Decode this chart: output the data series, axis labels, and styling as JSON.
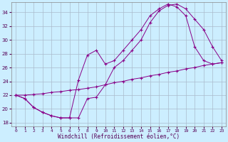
{
  "xlabel": "Windchill (Refroidissement éolien,°C)",
  "bg_color": "#cceeff",
  "grid_color": "#aabbcc",
  "line_color": "#880088",
  "xlim": [
    -0.5,
    23.5
  ],
  "ylim": [
    17.5,
    35.5
  ],
  "yticks": [
    18,
    20,
    22,
    24,
    26,
    28,
    30,
    32,
    34
  ],
  "xticks": [
    0,
    1,
    2,
    3,
    4,
    5,
    6,
    7,
    8,
    9,
    10,
    11,
    12,
    13,
    14,
    15,
    16,
    17,
    18,
    19,
    20,
    21,
    22,
    23
  ],
  "line1_x": [
    0,
    1,
    2,
    3,
    4,
    5,
    6,
    7,
    8,
    9,
    10,
    11,
    12,
    13,
    14,
    15,
    16,
    17,
    18,
    19,
    20,
    21,
    22,
    23
  ],
  "line1_y": [
    22.0,
    21.5,
    20.2,
    19.5,
    19.0,
    18.7,
    18.7,
    18.7,
    21.5,
    21.7,
    23.5,
    26.0,
    27.0,
    28.5,
    30.0,
    32.5,
    34.2,
    35.0,
    35.2,
    34.5,
    33.0,
    31.5,
    29.0,
    27.0
  ],
  "line2_x": [
    0,
    1,
    2,
    3,
    4,
    5,
    6,
    7,
    8,
    9,
    10,
    11,
    12,
    13,
    14,
    15,
    16,
    17,
    18,
    19,
    20,
    21,
    22,
    23
  ],
  "line2_y": [
    22.0,
    21.5,
    20.2,
    19.5,
    19.0,
    18.7,
    18.7,
    24.2,
    27.8,
    28.5,
    26.5,
    27.0,
    28.5,
    30.0,
    31.5,
    33.5,
    34.5,
    35.2,
    34.8,
    33.5,
    29.0,
    27.0,
    26.5,
    26.7
  ],
  "line3_x": [
    0,
    1,
    2,
    3,
    4,
    5,
    6,
    7,
    8,
    9,
    10,
    11,
    12,
    13,
    14,
    15,
    16,
    17,
    18,
    19,
    20,
    21,
    22,
    23
  ],
  "line3_y": [
    22.0,
    22.0,
    22.1,
    22.2,
    22.4,
    22.5,
    22.7,
    22.8,
    23.0,
    23.2,
    23.5,
    23.8,
    24.0,
    24.3,
    24.5,
    24.8,
    25.0,
    25.3,
    25.5,
    25.8,
    26.0,
    26.3,
    26.5,
    26.7
  ]
}
